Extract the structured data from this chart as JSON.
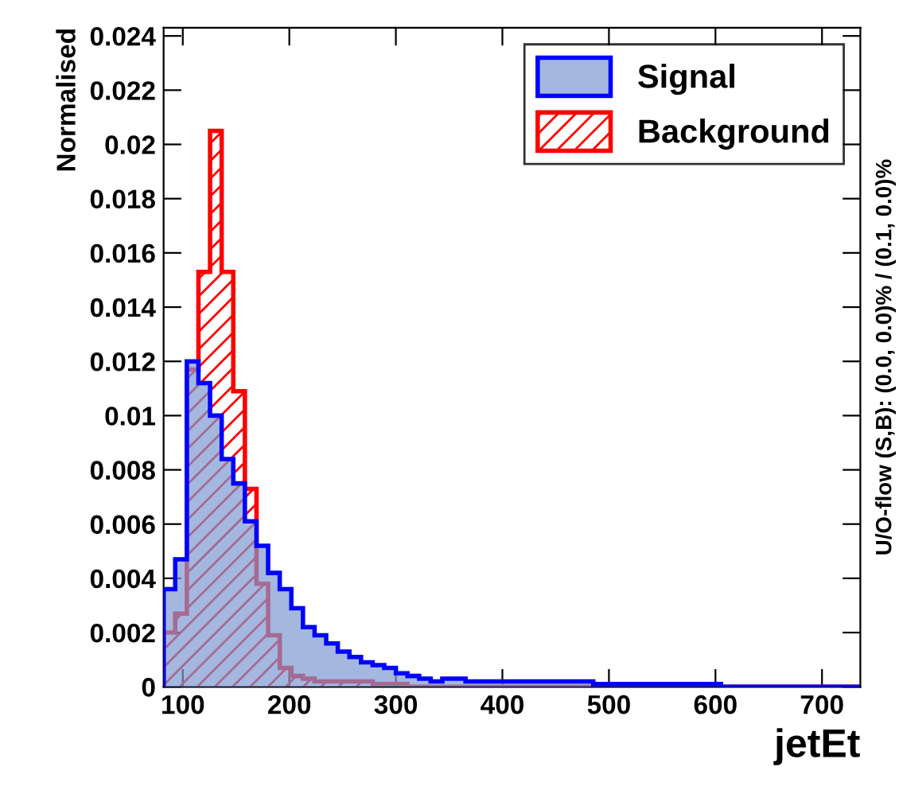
{
  "chart_data": {
    "type": "histogram",
    "xlabel": "jetEt",
    "ylabel": "Normalised",
    "annotations": [
      "U/O-flow (S,B): (0.0, 0.0)% / (0.1, 0.0)%"
    ],
    "bins": [
      82,
      92.9,
      103.8,
      114.7,
      125.6,
      136.5,
      147.4,
      158.3,
      169.2,
      180.1,
      191,
      201.9,
      212.8,
      223.7,
      234.6,
      245.5,
      256.4,
      267.3,
      278.2,
      289.1,
      300,
      310.9,
      321.8,
      332.7,
      343.6,
      354.5,
      365.4,
      376.3,
      387.2,
      398.1,
      409,
      419.9,
      430.8,
      441.7,
      452.6,
      463.5,
      474.4,
      485.3,
      496.2,
      507.1,
      518,
      528.9,
      539.8,
      550.7,
      561.6,
      572.5,
      583.4,
      594.3,
      605.2,
      616.1,
      627,
      637.9,
      648.8,
      659.7,
      670.6,
      681.5,
      692.4,
      703.3,
      714.2,
      725.1,
      736
    ],
    "series": [
      {
        "name": "Signal",
        "color": "#7d99d1",
        "values": [
          0.0036,
          0.0047,
          0.012,
          0.0112,
          0.01,
          0.0084,
          0.0075,
          0.0061,
          0.0052,
          0.0042,
          0.0036,
          0.0029,
          0.0022,
          0.0019,
          0.0016,
          0.0013,
          0.0011,
          0.0009,
          0.0008,
          0.0007,
          0.0005,
          0.0004,
          0.0003,
          0.0002,
          0.0003,
          0.0003,
          0.0002,
          0.0002,
          0.0002,
          0.0002,
          0.0002,
          0.0002,
          0.0002,
          0.0002,
          0.0002,
          0.0002,
          0.0002,
          0.0001,
          0.0001,
          0.0001,
          0.0001,
          0.0001,
          0.0001,
          0.0001,
          0.0001,
          0.0001,
          0.0001,
          0.0001,
          0,
          0,
          0,
          0,
          0,
          0,
          0,
          0,
          0,
          0,
          0,
          0
        ]
      },
      {
        "name": "Background",
        "color": "#ff0000",
        "values": [
          0.002,
          0.0027,
          0.0117,
          0.0153,
          0.0205,
          0.0153,
          0.0109,
          0.0073,
          0.0038,
          0.0019,
          0.0007,
          0.0004,
          0.0003,
          0.0002,
          0.0002,
          0.0002,
          0.0002,
          0.0002,
          0.0001,
          0.0001,
          0.0001,
          0,
          0,
          0,
          0,
          0,
          0,
          0,
          0,
          0,
          0,
          0,
          0,
          0,
          0,
          0,
          0,
          0,
          0,
          0,
          0,
          0,
          0,
          0,
          0,
          0,
          0,
          0,
          0,
          0,
          0,
          0,
          0,
          0,
          0,
          0,
          0,
          0,
          0,
          0
        ]
      }
    ],
    "xlim": [
      82,
      736
    ],
    "ylim": [
      0,
      0.0243
    ],
    "xticks": [
      100,
      200,
      300,
      400,
      500,
      600,
      700
    ],
    "yticks": [
      0,
      0.002,
      0.004,
      0.006,
      0.008,
      0.01,
      0.012,
      0.014,
      0.016,
      0.018,
      0.02,
      0.022,
      0.024
    ],
    "legend": "top right",
    "grid": false
  }
}
